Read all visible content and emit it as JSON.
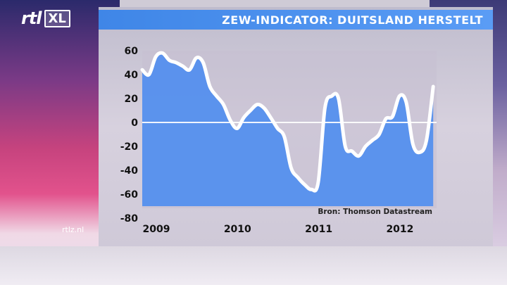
{
  "header": {
    "title": "ZEW-INDICATOR: DUITSLAND HERSTELT",
    "logo_main": "rtl",
    "logo_sub": "XL"
  },
  "footer": {
    "site": "rtlz.nl"
  },
  "colors": {
    "title_bar": "#4a90ee",
    "area_fill": "#4f8df0",
    "line": "#ffffff",
    "zero_line": "#ffffff"
  },
  "chart_data": {
    "type": "area",
    "title": "ZEW-INDICATOR: DUITSLAND HERSTELT",
    "source": "Bron: Thomson Datastream",
    "xlabel": "",
    "ylabel": "",
    "ylim": [
      -80,
      60
    ],
    "yticks": [
      60,
      40,
      20,
      0,
      -20,
      -40,
      -60,
      -80
    ],
    "xticks": [
      "2009",
      "2010",
      "2011",
      "2012"
    ],
    "xlim": [
      2009.0,
      2012.625
    ],
    "grid": false,
    "zero_line": true,
    "series": [
      {
        "x": [
          2009.0,
          2009.083,
          2009.167,
          2009.25,
          2009.333,
          2009.417,
          2009.5,
          2009.583,
          2009.667,
          2009.75,
          2009.833,
          2009.917,
          2010.0,
          2010.083,
          2010.167,
          2010.25,
          2010.333,
          2010.417,
          2010.5,
          2010.583,
          2010.667,
          2010.75,
          2010.833,
          2010.917,
          2011.0,
          2011.083,
          2011.167,
          2011.25,
          2011.333,
          2011.417,
          2011.5,
          2011.583,
          2011.667,
          2011.75,
          2011.833,
          2011.917,
          2012.0,
          2012.083,
          2012.167,
          2012.25,
          2012.333,
          2012.417,
          2012.5,
          2012.583
        ],
        "values": [
          44,
          40,
          55,
          58,
          52,
          50,
          47,
          44,
          54,
          50,
          30,
          22,
          15,
          2,
          -5,
          4,
          10,
          15,
          12,
          4,
          -5,
          -12,
          -38,
          -46,
          -52,
          -56,
          -50,
          12,
          22,
          20,
          -20,
          -24,
          -28,
          -20,
          -15,
          -10,
          3,
          5,
          22,
          17,
          -18,
          -25,
          -15,
          30
        ]
      }
    ]
  }
}
